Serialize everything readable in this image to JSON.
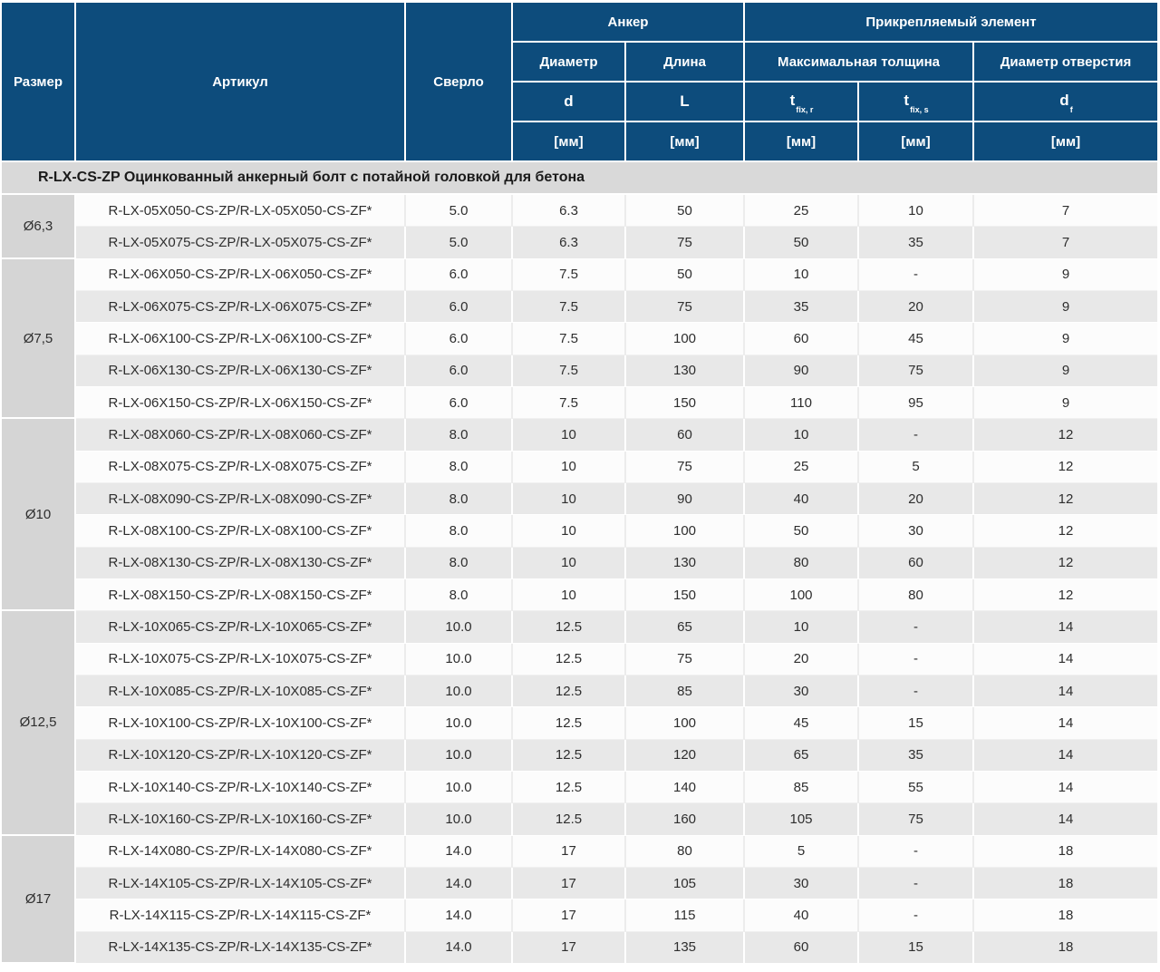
{
  "table": {
    "header": {
      "size": "Размер",
      "article": "Артикул",
      "drill": "Сверло",
      "anchor_group": "Анкер",
      "fixture_group": "Прикрепляемый элемент",
      "diameter": "Диаметр",
      "length": "Длина",
      "max_thickness": "Максимальная толщина",
      "hole_diameter": "Диаметр отверстия",
      "sym_d": "d",
      "sym_L": "L",
      "sym_t": "t",
      "sub_fixr": "fix, r",
      "sub_fixs": "fix, s",
      "sym_df": "d",
      "sub_f": "f",
      "unit": "[мм]"
    },
    "section_title": "R-LX-CS-ZP Оцинкованный анкерный болт с потайной головкой для бетона",
    "groups": [
      {
        "size": "Ø6,3",
        "rows": [
          {
            "article": "R-LX-05X050-CS-ZP/R-LX-05X050-CS-ZF*",
            "drill": "5.0",
            "d": "6.3",
            "L": "50",
            "tfixr": "25",
            "tfixs": "10",
            "df": "7"
          },
          {
            "article": "R-LX-05X075-CS-ZP/R-LX-05X075-CS-ZF*",
            "drill": "5.0",
            "d": "6.3",
            "L": "75",
            "tfixr": "50",
            "tfixs": "35",
            "df": "7"
          }
        ]
      },
      {
        "size": "Ø7,5",
        "rows": [
          {
            "article": "R-LX-06X050-CS-ZP/R-LX-06X050-CS-ZF*",
            "drill": "6.0",
            "d": "7.5",
            "L": "50",
            "tfixr": "10",
            "tfixs": "-",
            "df": "9"
          },
          {
            "article": "R-LX-06X075-CS-ZP/R-LX-06X075-CS-ZF*",
            "drill": "6.0",
            "d": "7.5",
            "L": "75",
            "tfixr": "35",
            "tfixs": "20",
            "df": "9"
          },
          {
            "article": "R-LX-06X100-CS-ZP/R-LX-06X100-CS-ZF*",
            "drill": "6.0",
            "d": "7.5",
            "L": "100",
            "tfixr": "60",
            "tfixs": "45",
            "df": "9"
          },
          {
            "article": "R-LX-06X130-CS-ZP/R-LX-06X130-CS-ZF*",
            "drill": "6.0",
            "d": "7.5",
            "L": "130",
            "tfixr": "90",
            "tfixs": "75",
            "df": "9"
          },
          {
            "article": "R-LX-06X150-CS-ZP/R-LX-06X150-CS-ZF*",
            "drill": "6.0",
            "d": "7.5",
            "L": "150",
            "tfixr": "110",
            "tfixs": "95",
            "df": "9"
          }
        ]
      },
      {
        "size": "Ø10",
        "rows": [
          {
            "article": "R-LX-08X060-CS-ZP/R-LX-08X060-CS-ZF*",
            "drill": "8.0",
            "d": "10",
            "L": "60",
            "tfixr": "10",
            "tfixs": "-",
            "df": "12"
          },
          {
            "article": "R-LX-08X075-CS-ZP/R-LX-08X075-CS-ZF*",
            "drill": "8.0",
            "d": "10",
            "L": "75",
            "tfixr": "25",
            "tfixs": "5",
            "df": "12"
          },
          {
            "article": "R-LX-08X090-CS-ZP/R-LX-08X090-CS-ZF*",
            "drill": "8.0",
            "d": "10",
            "L": "90",
            "tfixr": "40",
            "tfixs": "20",
            "df": "12"
          },
          {
            "article": "R-LX-08X100-CS-ZP/R-LX-08X100-CS-ZF*",
            "drill": "8.0",
            "d": "10",
            "L": "100",
            "tfixr": "50",
            "tfixs": "30",
            "df": "12"
          },
          {
            "article": "R-LX-08X130-CS-ZP/R-LX-08X130-CS-ZF*",
            "drill": "8.0",
            "d": "10",
            "L": "130",
            "tfixr": "80",
            "tfixs": "60",
            "df": "12"
          },
          {
            "article": "R-LX-08X150-CS-ZP/R-LX-08X150-CS-ZF*",
            "drill": "8.0",
            "d": "10",
            "L": "150",
            "tfixr": "100",
            "tfixs": "80",
            "df": "12"
          }
        ]
      },
      {
        "size": "Ø12,5",
        "rows": [
          {
            "article": "R-LX-10X065-CS-ZP/R-LX-10X065-CS-ZF*",
            "drill": "10.0",
            "d": "12.5",
            "L": "65",
            "tfixr": "10",
            "tfixs": "-",
            "df": "14"
          },
          {
            "article": "R-LX-10X075-CS-ZP/R-LX-10X075-CS-ZF*",
            "drill": "10.0",
            "d": "12.5",
            "L": "75",
            "tfixr": "20",
            "tfixs": "-",
            "df": "14"
          },
          {
            "article": "R-LX-10X085-CS-ZP/R-LX-10X085-CS-ZF*",
            "drill": "10.0",
            "d": "12.5",
            "L": "85",
            "tfixr": "30",
            "tfixs": "-",
            "df": "14"
          },
          {
            "article": "R-LX-10X100-CS-ZP/R-LX-10X100-CS-ZF*",
            "drill": "10.0",
            "d": "12.5",
            "L": "100",
            "tfixr": "45",
            "tfixs": "15",
            "df": "14"
          },
          {
            "article": "R-LX-10X120-CS-ZP/R-LX-10X120-CS-ZF*",
            "drill": "10.0",
            "d": "12.5",
            "L": "120",
            "tfixr": "65",
            "tfixs": "35",
            "df": "14"
          },
          {
            "article": "R-LX-10X140-CS-ZP/R-LX-10X140-CS-ZF*",
            "drill": "10.0",
            "d": "12.5",
            "L": "140",
            "tfixr": "85",
            "tfixs": "55",
            "df": "14"
          },
          {
            "article": "R-LX-10X160-CS-ZP/R-LX-10X160-CS-ZF*",
            "drill": "10.0",
            "d": "12.5",
            "L": "160",
            "tfixr": "105",
            "tfixs": "75",
            "df": "14"
          }
        ]
      },
      {
        "size": "Ø17",
        "rows": [
          {
            "article": "R-LX-14X080-CS-ZP/R-LX-14X080-CS-ZF*",
            "drill": "14.0",
            "d": "17",
            "L": "80",
            "tfixr": "5",
            "tfixs": "-",
            "df": "18"
          },
          {
            "article": "R-LX-14X105-CS-ZP/R-LX-14X105-CS-ZF*",
            "drill": "14.0",
            "d": "17",
            "L": "105",
            "tfixr": "30",
            "tfixs": "-",
            "df": "18"
          },
          {
            "article": "R-LX-14X115-CS-ZP/R-LX-14X115-CS-ZF*",
            "drill": "14.0",
            "d": "17",
            "L": "115",
            "tfixr": "40",
            "tfixs": "-",
            "df": "18"
          },
          {
            "article": "R-LX-14X135-CS-ZP/R-LX-14X135-CS-ZF*",
            "drill": "14.0",
            "d": "17",
            "L": "135",
            "tfixr": "60",
            "tfixs": "15",
            "df": "18"
          }
        ]
      }
    ]
  },
  "colors": {
    "header_blue": "#0d4c7c",
    "section_gray": "#d9d9d9",
    "size_cell_gray": "#d5d5d5",
    "stripe_gray": "#e8e8e8",
    "row_white": "#fcfcfc"
  }
}
